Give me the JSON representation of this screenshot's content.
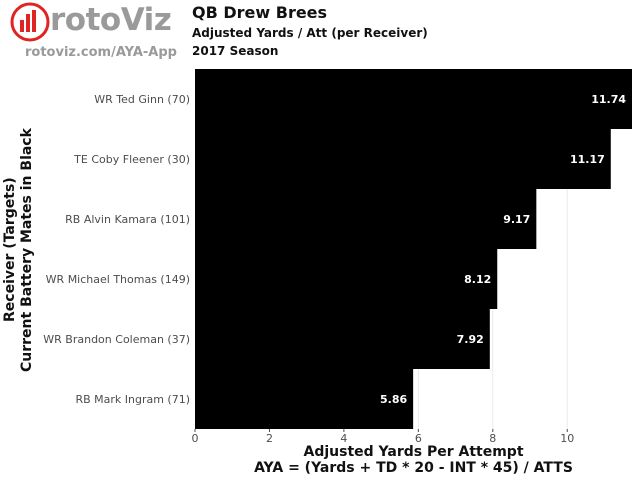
{
  "branding": {
    "logo_text": "rotoViz",
    "site_url": "rotoviz.com/AYA-App",
    "logo_bar_color": "#e02424"
  },
  "header": {
    "title": "QB Drew Brees",
    "subtitle": "Adjusted Yards / Att (per Receiver)",
    "season": "2017 Season"
  },
  "chart_data": {
    "type": "bar",
    "orientation": "horizontal",
    "categories": [
      "WR Ted Ginn (70)",
      "TE Coby Fleener (30)",
      "RB Alvin Kamara (101)",
      "WR Michael Thomas (149)",
      "WR Brandon Coleman (37)",
      "RB Mark Ingram (71)"
    ],
    "values": [
      11.74,
      11.17,
      9.17,
      8.12,
      7.92,
      5.86
    ],
    "value_labels": [
      "11.74",
      "11.17",
      "9.17",
      "8.12",
      "7.92",
      "5.86"
    ],
    "bar_color": "#000000",
    "label_color": "#ffffff",
    "xlim": [
      0,
      11.74
    ],
    "xticks": [
      0,
      2,
      4,
      6,
      8,
      10
    ],
    "grid": true,
    "xlabel": "Adjusted Yards Per Attempt",
    "xlabel_formula": "AYA = (Yards + TD * 20 - INT * 45) / ATTS",
    "ylabel": "Receiver (Targets)",
    "ylabel_sub": "Current Battery Mates in Black"
  }
}
